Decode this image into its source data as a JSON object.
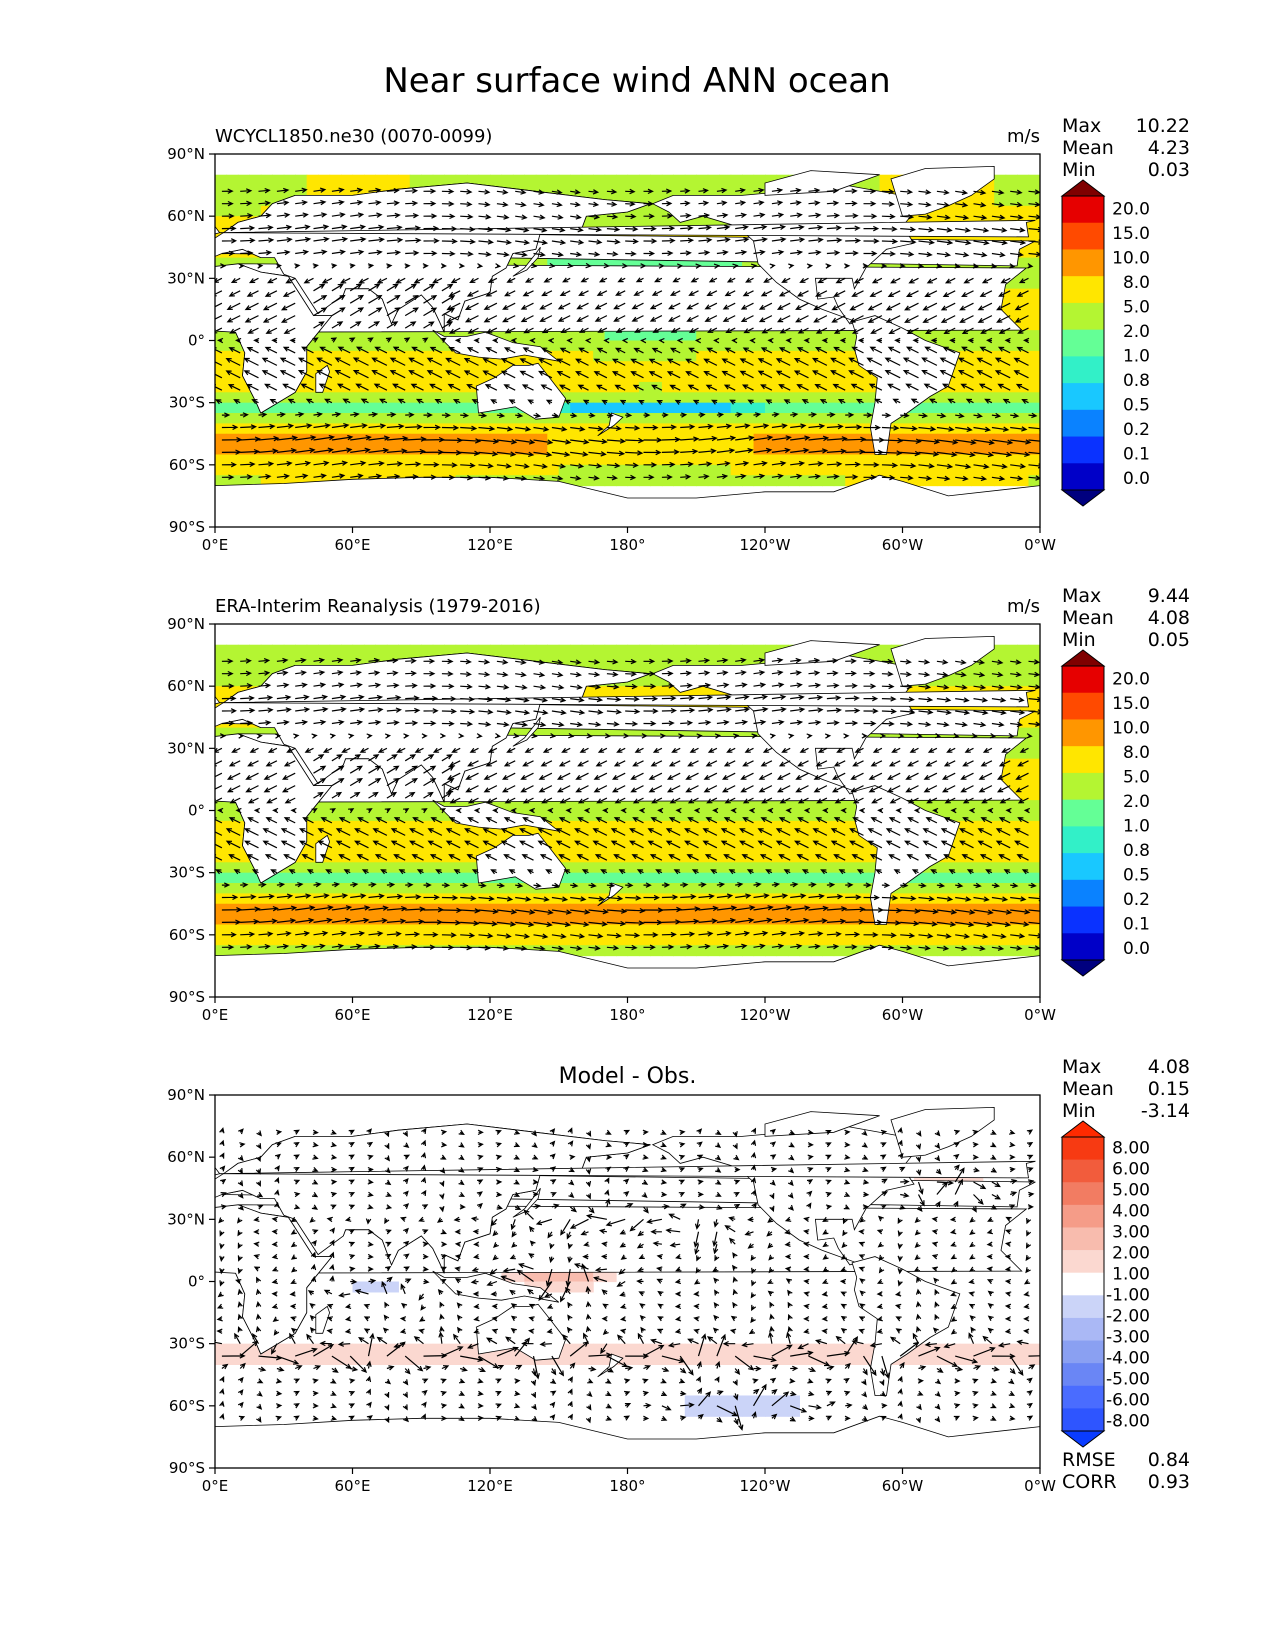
{
  "figure": {
    "title": "Near surface wind ANN ocean"
  },
  "chart_data": [
    {
      "type": "heatmap",
      "title": "WCYCL1850.ne30 (0070-0099)",
      "units": "m/s",
      "stats": {
        "max_label": "Max",
        "max": "10.22",
        "mean_label": "Mean",
        "mean": "4.23",
        "min_label": "Min",
        "min": "0.03"
      },
      "colorbar": {
        "levels": [
          "0.0",
          "0.1",
          "0.2",
          "0.5",
          "0.8",
          "1.0",
          "2.0",
          "5.0",
          "8.0",
          "10.0",
          "15.0",
          "20.0"
        ],
        "colors": [
          "#00007f",
          "#0000c8",
          "#0a32ff",
          "#0a82ff",
          "#19c8ff",
          "#32f0c8",
          "#64ff96",
          "#b4f532",
          "#ffe600",
          "#ff9600",
          "#ff4a00",
          "#e60000",
          "#7f0000"
        ]
      },
      "x_ticks": [
        "0°E",
        "60°E",
        "120°E",
        "180°",
        "120°W",
        "60°W",
        "0°W"
      ],
      "y_ticks": [
        "90°N",
        "60°N",
        "30°N",
        "0°",
        "30°S",
        "60°S",
        "90°S"
      ],
      "xlim": [
        0,
        360
      ],
      "ylim": [
        -90,
        90
      ]
    },
    {
      "type": "heatmap",
      "title": "ERA-Interim Reanalysis (1979-2016)",
      "units": "m/s",
      "stats": {
        "max_label": "Max",
        "max": "9.44",
        "mean_label": "Mean",
        "mean": "4.08",
        "min_label": "Min",
        "min": "0.05"
      },
      "colorbar": {
        "levels": [
          "0.0",
          "0.1",
          "0.2",
          "0.5",
          "0.8",
          "1.0",
          "2.0",
          "5.0",
          "8.0",
          "10.0",
          "15.0",
          "20.0"
        ],
        "colors": [
          "#00007f",
          "#0000c8",
          "#0a32ff",
          "#0a82ff",
          "#19c8ff",
          "#32f0c8",
          "#64ff96",
          "#b4f532",
          "#ffe600",
          "#ff9600",
          "#ff4a00",
          "#e60000",
          "#7f0000"
        ]
      },
      "x_ticks": [
        "0°E",
        "60°E",
        "120°E",
        "180°",
        "120°W",
        "60°W",
        "0°W"
      ],
      "y_ticks": [
        "90°N",
        "60°N",
        "30°N",
        "0°",
        "30°S",
        "60°S",
        "90°S"
      ],
      "xlim": [
        0,
        360
      ],
      "ylim": [
        -90,
        90
      ]
    },
    {
      "type": "heatmap",
      "title": "Model - Obs.",
      "units": "",
      "stats": {
        "max_label": "Max",
        "max": "4.08",
        "mean_label": "Mean",
        "mean": "0.15",
        "min_label": "Min",
        "min": "-3.14"
      },
      "extra": {
        "rmse_label": "RMSE",
        "rmse": "0.84",
        "corr_label": "CORR",
        "corr": "0.93"
      },
      "colorbar": {
        "levels": [
          "-8.00",
          "-6.00",
          "-5.00",
          "-4.00",
          "-3.00",
          "-2.00",
          "-1.00",
          "1.00",
          "2.00",
          "3.00",
          "4.00",
          "5.00",
          "6.00",
          "8.00"
        ],
        "colors": [
          "#0a3cff",
          "#2e55ff",
          "#4a6cff",
          "#6a86f5",
          "#8aa0f2",
          "#aab8f5",
          "#cbd4f8",
          "#ffffff",
          "#fbd8d0",
          "#f8bcae",
          "#f59c88",
          "#f27c62",
          "#f25c3c",
          "#f73a12",
          "#ff2a00"
        ]
      },
      "x_ticks": [
        "0°E",
        "60°E",
        "120°E",
        "180°",
        "120°W",
        "60°W",
        "0°W"
      ],
      "y_ticks": [
        "90°N",
        "60°N",
        "30°N",
        "0°",
        "30°S",
        "60°S",
        "90°S"
      ],
      "xlim": [
        0,
        360
      ],
      "ylim": [
        -90,
        90
      ]
    }
  ]
}
